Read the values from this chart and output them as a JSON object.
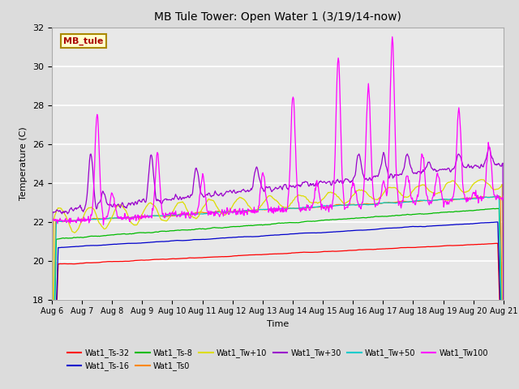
{
  "title": "MB Tule Tower: Open Water 1 (3/19/14-now)",
  "xlabel": "Time",
  "ylabel": "Temperature (C)",
  "ylim": [
    18,
    32
  ],
  "xlim": [
    0,
    15
  ],
  "x_tick_labels": [
    "Aug 6",
    "Aug 7",
    "Aug 8",
    "Aug 9",
    "Aug 10",
    "Aug 11",
    "Aug 12",
    "Aug 13",
    "Aug 14",
    "Aug 15",
    "Aug 16",
    "Aug 17",
    "Aug 18",
    "Aug 19",
    "Aug 20",
    "Aug 21"
  ],
  "background_color": "#dcdcdc",
  "plot_bg_color": "#e8e8e8",
  "series": [
    {
      "label": "Wat1_Ts-32",
      "color": "#ff0000"
    },
    {
      "label": "Wat1_Ts-16",
      "color": "#0000cc"
    },
    {
      "label": "Wat1_Ts-8",
      "color": "#00bb00"
    },
    {
      "label": "Wat1_Ts0",
      "color": "#ff8800"
    },
    {
      "label": "Wat1_Tw+10",
      "color": "#dddd00"
    },
    {
      "label": "Wat1_Tw+30",
      "color": "#9900cc"
    },
    {
      "label": "Wat1_Tw+50",
      "color": "#00cccc"
    },
    {
      "label": "Wat1_Tw100",
      "color": "#ff00ff"
    }
  ],
  "watermark_text": "MB_tule",
  "watermark_color": "#aa0000",
  "watermark_bg": "#ffffcc",
  "watermark_border": "#aa8800"
}
